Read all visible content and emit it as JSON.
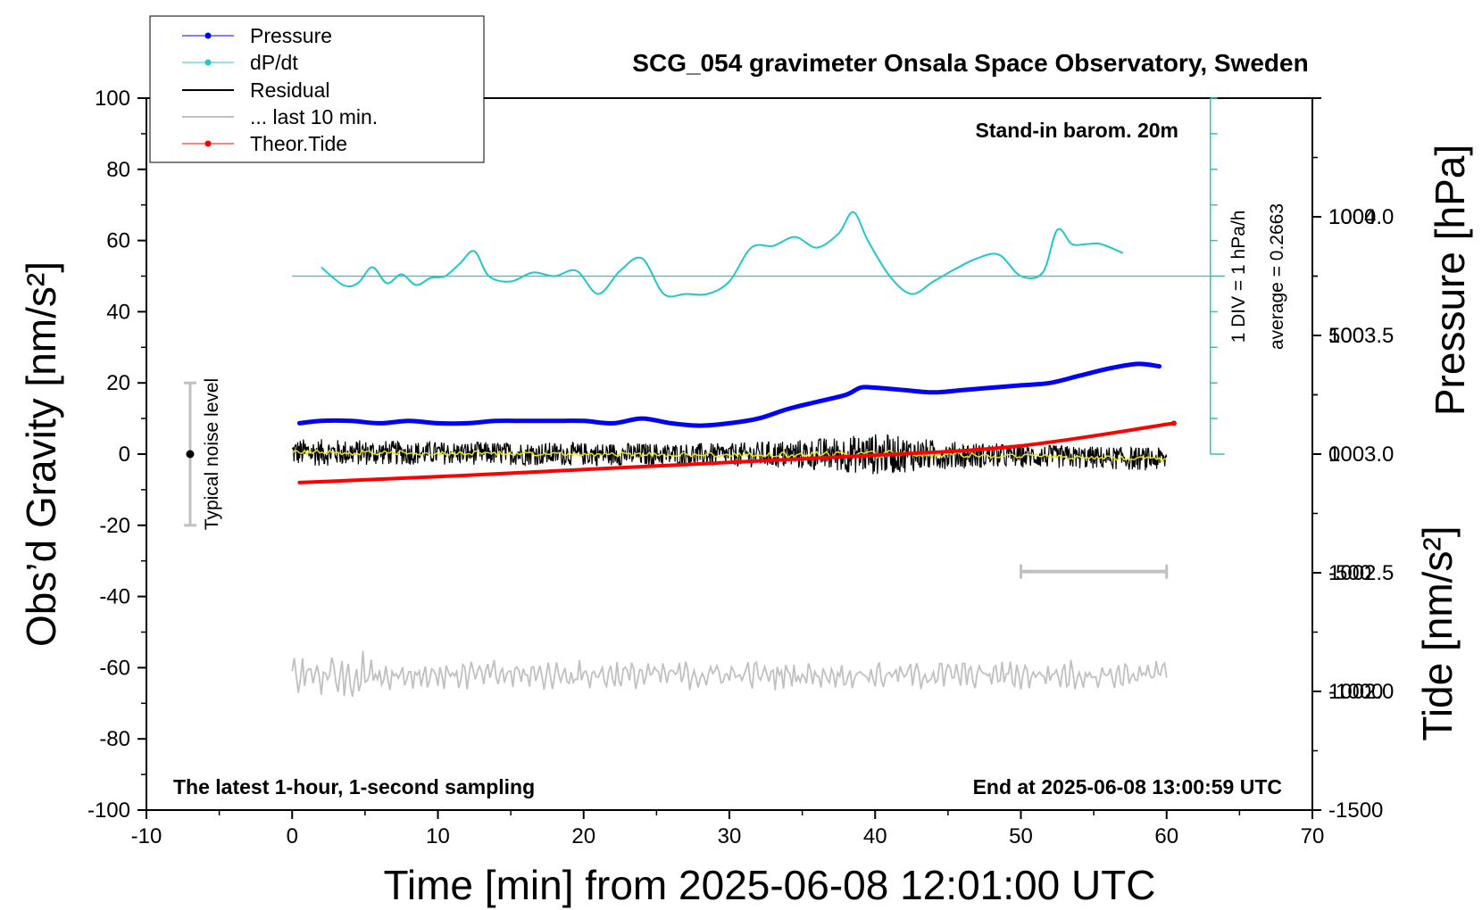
{
  "chart_data": {
    "type": "line",
    "title": "SCG_054 gravimeter Onsala Space Observatory, Sweden",
    "xlabel": "Time [min] from 2025-06-08 12:01:00 UTC",
    "ylabel": "Obs’d Gravity [nm/s²]",
    "y2label": "Pressure [hPa]",
    "y3label": "Tide [nm/s²]",
    "xlim": [
      -10,
      70
    ],
    "ylim": [
      -100,
      100
    ],
    "y2lim": [
      1001.5,
      1004.5
    ],
    "y3lim": [
      -1500,
      1500
    ],
    "xticks": [
      -10,
      0,
      10,
      20,
      30,
      40,
      50,
      60,
      70
    ],
    "yticks": [
      -100,
      -80,
      -60,
      -40,
      -20,
      0,
      20,
      40,
      60,
      80,
      100
    ],
    "y2ticks": [
      "1002.0",
      "1002.5",
      "1003.0",
      "1003.5",
      "1004.0"
    ],
    "y3ticks": [
      -1500,
      -1000,
      -500,
      0,
      500,
      1000
    ],
    "grid": false,
    "legend_position": "top-left",
    "legend": [
      {
        "label": "Pressure",
        "color": "#0000ff",
        "marker": "dot"
      },
      {
        "label": "dP/dt",
        "color": "#20c8c8",
        "marker": "dot"
      },
      {
        "label": "Residual",
        "color": "#000000",
        "marker": "none"
      },
      {
        "label": "... last 10 min.",
        "color": "#c0c0c0",
        "marker": "none"
      },
      {
        "label": "Theor.Tide",
        "color": "#ff0000",
        "marker": "dot"
      }
    ],
    "annotations": {
      "stand_in": "Stand-in barom. 20m",
      "dpdt_div": "1 DIV = 1 hPa/h",
      "dpdt_avg": "average = 0.2663",
      "noise": "Typical noise level",
      "bottom_left": "The latest 1-hour, 1-second sampling",
      "bottom_right": "End at 2025-06-08 13:00:59 UTC"
    },
    "noise_level_range": [
      -20,
      20
    ],
    "noise_level_x": -7,
    "last10_bar_x": [
      50,
      60
    ],
    "last10_bar_y": -33,
    "dpdt_scale": {
      "x": 63,
      "y_base": 0,
      "y_top": 100,
      "baseline_gravity": 50,
      "div_gravity": 10
    },
    "series": [
      {
        "name": "Pressure",
        "axis": "pressure",
        "color": "#0000ff",
        "x": [
          0.5,
          2,
          4,
          6,
          8,
          10,
          12,
          14,
          16,
          18,
          20,
          22,
          24,
          26,
          28,
          30,
          32,
          34,
          36,
          38,
          39,
          40,
          42,
          44,
          46,
          48,
          50,
          52,
          54,
          56,
          58,
          59.5
        ],
        "y": [
          1003.13,
          1003.14,
          1003.14,
          1003.13,
          1003.14,
          1003.13,
          1003.13,
          1003.14,
          1003.14,
          1003.14,
          1003.14,
          1003.13,
          1003.15,
          1003.13,
          1003.12,
          1003.13,
          1003.15,
          1003.19,
          1003.22,
          1003.25,
          1003.28,
          1003.28,
          1003.27,
          1003.26,
          1003.27,
          1003.28,
          1003.29,
          1003.3,
          1003.33,
          1003.36,
          1003.38,
          1003.37
        ]
      },
      {
        "name": "dP/dt",
        "axis": "gravity",
        "color": "#20c8c8",
        "x": [
          2,
          3.5,
          4.5,
          5.5,
          6.5,
          7.5,
          8.5,
          9.5,
          10.5,
          11.5,
          12.5,
          13.5,
          15,
          16.5,
          18,
          19.5,
          21,
          22.5,
          24,
          25.5,
          27,
          28.5,
          30,
          31.5,
          33,
          34.5,
          36,
          37.5,
          38.5,
          39.5,
          41,
          42.5,
          44,
          45.5,
          47,
          48.5,
          50,
          51.5,
          52.5,
          53.5,
          54.5,
          55.5,
          57
        ],
        "y": [
          52.5,
          47.5,
          48,
          52.5,
          48,
          50.5,
          47.5,
          49.5,
          50,
          53.5,
          57,
          50,
          48.5,
          51,
          50,
          51.5,
          45,
          51.5,
          55,
          45,
          45,
          45,
          48.5,
          58,
          58.5,
          61,
          58,
          62,
          68,
          60,
          50,
          45,
          48.5,
          52,
          55,
          56,
          50,
          51,
          63,
          59,
          59,
          59,
          56.5
        ]
      },
      {
        "name": "Residual",
        "axis": "gravity",
        "color": "#000000",
        "x_start": 0,
        "x_end": 60,
        "mean_trend": [
          [
            0,
            0.5
          ],
          [
            10,
            0.3
          ],
          [
            20,
            0
          ],
          [
            30,
            -0.2
          ],
          [
            40,
            0
          ],
          [
            50,
            -0.5
          ],
          [
            60,
            -1.5
          ]
        ],
        "amplitude_profile": [
          [
            0,
            3
          ],
          [
            10,
            2.5
          ],
          [
            20,
            2.5
          ],
          [
            30,
            2.5
          ],
          [
            36,
            3.5
          ],
          [
            40,
            4.5
          ],
          [
            45,
            3
          ],
          [
            50,
            2.5
          ],
          [
            60,
            2.5
          ]
        ],
        "smooth_color": "#e8e800"
      },
      {
        "name": "... last 10 min.",
        "axis": "gravity",
        "color": "#c0c0c0",
        "x_start": 0,
        "x_end": 60,
        "center": -62,
        "amplitude": 3.5
      },
      {
        "name": "Theor.Tide",
        "axis": "tide",
        "color": "#ff0000",
        "x": [
          0.5,
          10,
          20,
          30,
          40,
          50,
          60.5
        ],
        "y": [
          -120,
          -95,
          -65,
          -35,
          -5,
          35,
          130
        ]
      }
    ]
  }
}
